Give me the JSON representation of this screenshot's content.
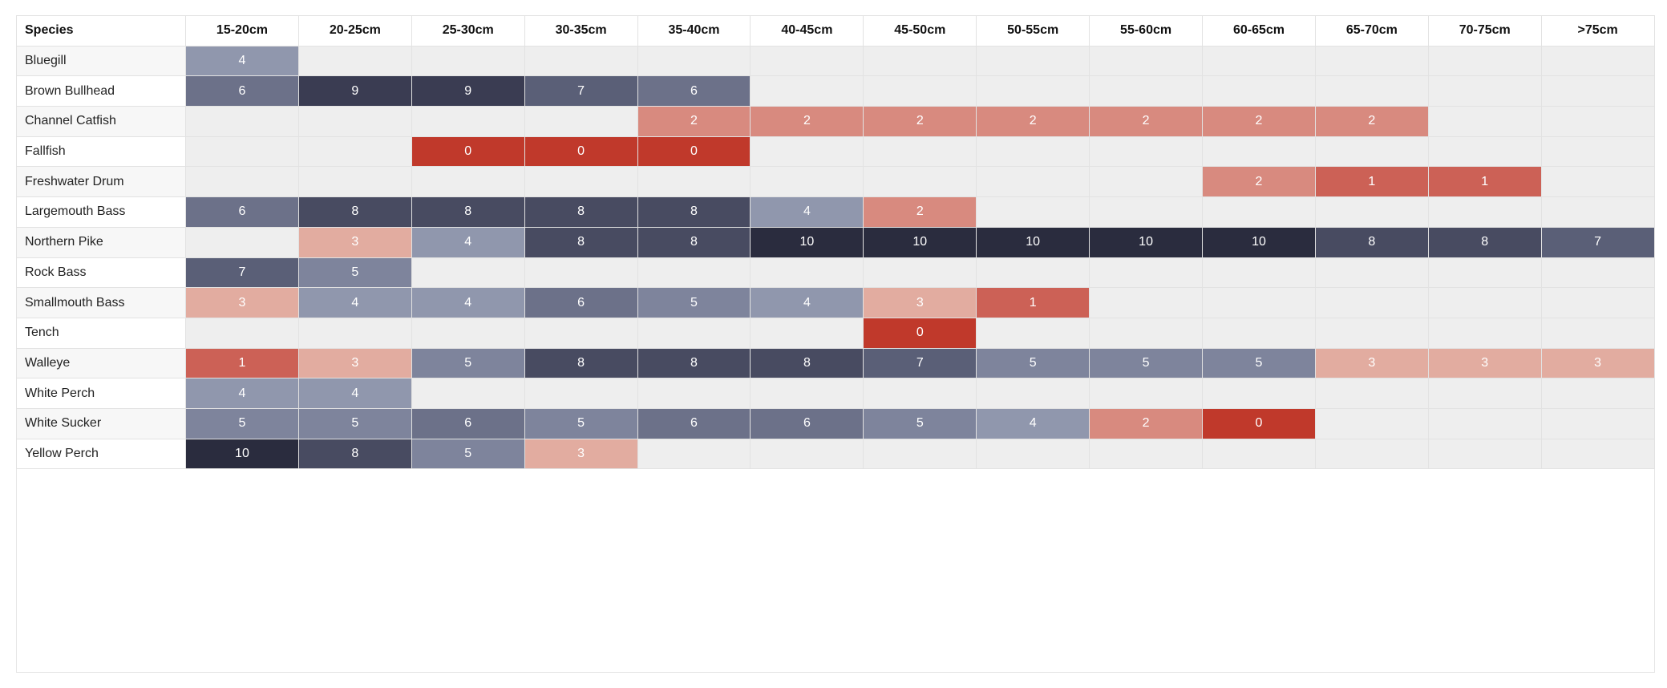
{
  "chart_data": {
    "type": "heatmap",
    "title": "",
    "xlabel": "",
    "ylabel": "",
    "corner_label": "Species",
    "x": [
      "15-20cm",
      "20-25cm",
      "25-30cm",
      "30-35cm",
      "35-40cm",
      "40-45cm",
      "45-50cm",
      "50-55cm",
      "55-60cm",
      "60-65cm",
      "65-70cm",
      "70-75cm",
      ">75cm"
    ],
    "y": [
      "Bluegill",
      "Brown Bullhead",
      "Channel Catfish",
      "Fallfish",
      "Freshwater Drum",
      "Largemouth Bass",
      "Northern Pike",
      "Rock Bass",
      "Smallmouth Bass",
      "Tench",
      "Walleye",
      "White Perch",
      "White Sucker",
      "Yellow Perch"
    ],
    "values": [
      [
        4,
        null,
        null,
        null,
        null,
        null,
        null,
        null,
        null,
        null,
        null,
        null,
        null
      ],
      [
        6,
        9,
        9,
        7,
        6,
        null,
        null,
        null,
        null,
        null,
        null,
        null,
        null
      ],
      [
        null,
        null,
        null,
        null,
        2,
        2,
        2,
        2,
        2,
        2,
        2,
        null,
        null
      ],
      [
        null,
        null,
        0,
        0,
        0,
        null,
        null,
        null,
        null,
        null,
        null,
        null,
        null
      ],
      [
        null,
        null,
        null,
        null,
        null,
        null,
        null,
        null,
        null,
        2,
        1,
        1,
        null
      ],
      [
        6,
        8,
        8,
        8,
        8,
        4,
        2,
        null,
        null,
        null,
        null,
        null,
        null
      ],
      [
        null,
        3,
        4,
        8,
        8,
        10,
        10,
        10,
        10,
        10,
        8,
        8,
        7
      ],
      [
        7,
        5,
        null,
        null,
        null,
        null,
        null,
        null,
        null,
        null,
        null,
        null,
        null
      ],
      [
        3,
        4,
        4,
        6,
        5,
        4,
        3,
        1,
        null,
        null,
        null,
        null,
        null
      ],
      [
        null,
        null,
        null,
        null,
        null,
        null,
        0,
        null,
        null,
        null,
        null,
        null,
        null
      ],
      [
        1,
        3,
        5,
        8,
        8,
        8,
        7,
        5,
        5,
        5,
        3,
        3,
        3
      ],
      [
        4,
        4,
        null,
        null,
        null,
        null,
        null,
        null,
        null,
        null,
        null,
        null,
        null
      ],
      [
        5,
        5,
        6,
        5,
        6,
        6,
        5,
        4,
        2,
        0,
        null,
        null,
        null
      ],
      [
        10,
        8,
        5,
        3,
        null,
        null,
        null,
        null,
        null,
        null,
        null,
        null,
        null
      ]
    ],
    "color_scale": {
      "0": "#c0392b",
      "1": "#cc6156",
      "2": "#d88a7f",
      "3": "#e2aca0",
      "4": "#9097ad",
      "5": "#7e849c",
      "6": "#6c7189",
      "7": "#5a5f77",
      "8": "#484b61",
      "9": "#3a3c52",
      "10": "#2a2c3e",
      "empty": "#eeeeee"
    }
  }
}
